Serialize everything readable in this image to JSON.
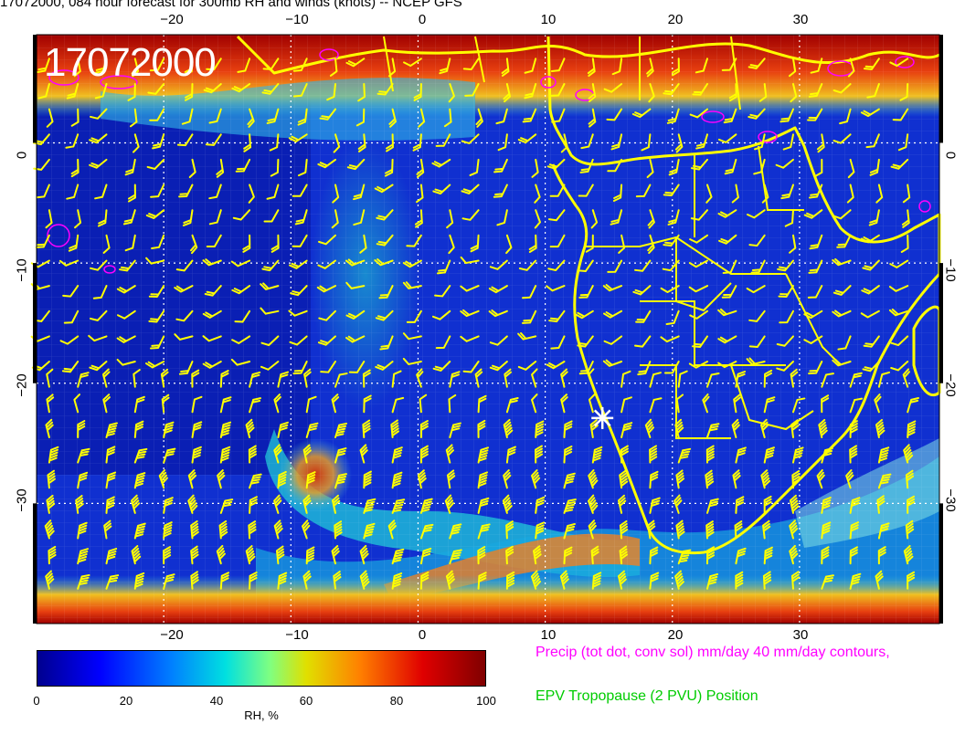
{
  "title": "17072000, 084 hour forecast for 300mb RH and winds (knots) -- NCEP GFS",
  "timestamp_overlay": "17072000",
  "axes": {
    "lon_ticks": [
      "−20",
      "−10",
      "0",
      "10",
      "20",
      "30"
    ],
    "lat_ticks": [
      "0",
      "−10",
      "−20",
      "−30"
    ],
    "lon_range": [
      -30,
      41
    ],
    "lat_range": [
      -40,
      9
    ]
  },
  "colorbar": {
    "label": "RH, %",
    "ticks": [
      "0",
      "20",
      "40",
      "60",
      "80",
      "100"
    ],
    "range": [
      0,
      100
    ]
  },
  "legend": {
    "precip": "Precip (tot dot, conv sol) mm/day 40 mm/day contours,",
    "epv": "EPV Tropopause (2 PVU) Position"
  },
  "colors": {
    "wind_barbs": "#ffff00",
    "coastlines": "#ffff00",
    "precip_contours": "#ff00ff",
    "epv_text": "#00cc00",
    "precip_text": "#ff00ff",
    "marker": "#ffffff"
  },
  "marker": {
    "label": "",
    "lon": 14.5,
    "lat": -22.9
  }
}
